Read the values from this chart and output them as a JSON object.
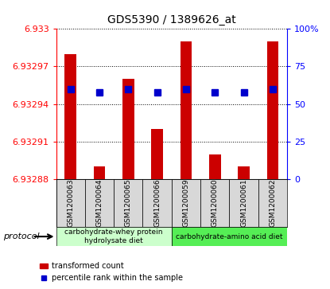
{
  "title": "GDS5390 / 1389626_at",
  "samples": [
    "GSM1200063",
    "GSM1200064",
    "GSM1200065",
    "GSM1200066",
    "GSM1200059",
    "GSM1200060",
    "GSM1200061",
    "GSM1200062"
  ],
  "red_values": [
    6.93298,
    6.93289,
    6.93296,
    6.93292,
    6.93299,
    6.9329,
    6.93289,
    6.93299
  ],
  "blue_percentiles": [
    60,
    58,
    60,
    58,
    60,
    58,
    58,
    60
  ],
  "ymin": 6.93288,
  "ymax": 6.933,
  "yticks": [
    6.93288,
    6.93291,
    6.93294,
    6.93297,
    6.933
  ],
  "ytick_labels": [
    "6.93288",
    "6.93291",
    "6.93294",
    "6.93297",
    "6.933"
  ],
  "y2ticks": [
    0,
    25,
    50,
    75,
    100
  ],
  "y2tick_labels": [
    "0",
    "25",
    "50",
    "75",
    "100%"
  ],
  "group1_label": "carbohydrate-whey protein\nhydrolysate diet",
  "group2_label": "carbohydrate-amino acid diet",
  "group1_color": "#ccffcc",
  "group2_color": "#55ee55",
  "protocol_label": "protocol",
  "legend_red": "transformed count",
  "legend_blue": "percentile rank within the sample",
  "bar_color": "#cc0000",
  "dot_color": "#0000cc",
  "bar_width": 0.4,
  "dot_size": 6,
  "plot_bg": "#ffffff"
}
